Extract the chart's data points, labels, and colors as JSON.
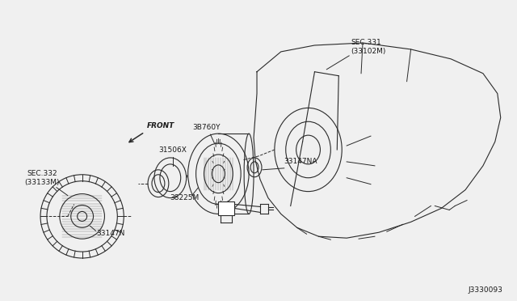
{
  "bg_color": "#f0f0f0",
  "line_color": "#2a2a2a",
  "text_color": "#1a1a1a",
  "diagram_id": "J3330093",
  "labels": {
    "SEC331": "SEC.331\n(33102M)",
    "SEC332": "SEC.332\n(33133M)",
    "part_3B760Y": "3B760Y",
    "part_31506X": "31506X",
    "part_33147NA": "33147NA",
    "part_38225M": "38225M",
    "part_33147N": "33147N",
    "front": "FRONT"
  },
  "figsize": [
    6.4,
    3.72
  ],
  "dpi": 100
}
